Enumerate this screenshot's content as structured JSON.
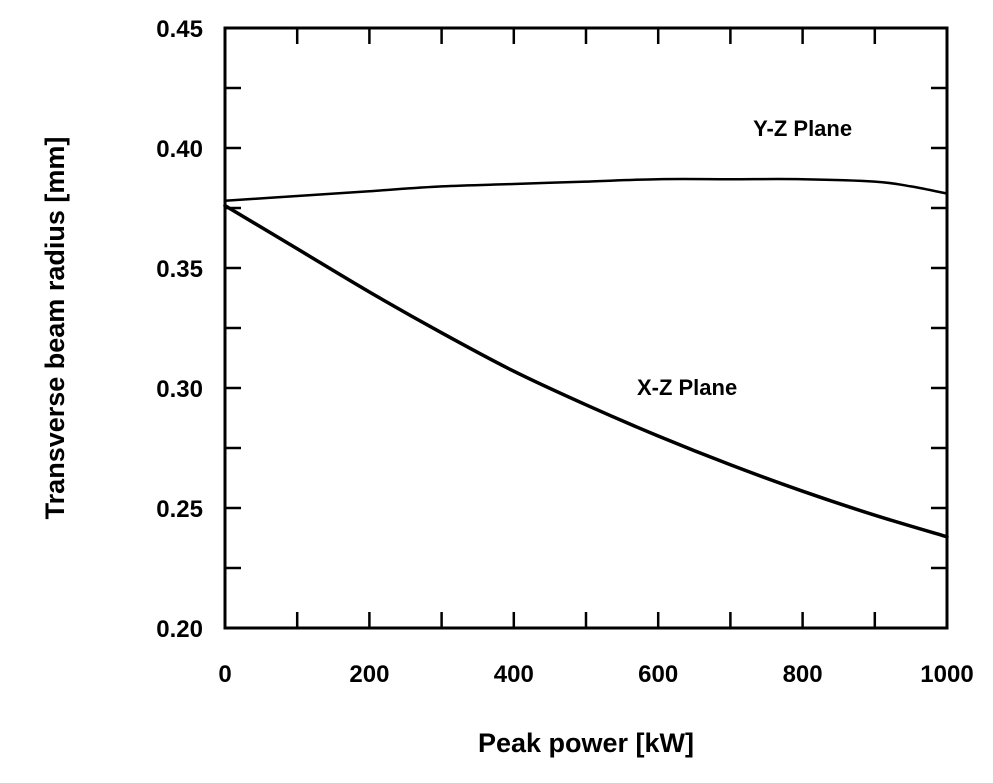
{
  "chart_data": {
    "type": "line",
    "title": "",
    "xlabel": "Peak power [kW]",
    "ylabel": "Transverse beam radius [mm]",
    "xlim": [
      0,
      1000
    ],
    "ylim": [
      0.2,
      0.45
    ],
    "x_ticks": [
      0,
      200,
      400,
      600,
      800,
      1000
    ],
    "x_tick_labels": [
      "0",
      "200",
      "400",
      "600",
      "800",
      "1000"
    ],
    "x_minor_step": 100,
    "y_ticks": [
      0.2,
      0.25,
      0.3,
      0.35,
      0.4,
      0.45
    ],
    "y_tick_labels": [
      "0.20",
      "0.25",
      "0.30",
      "0.35",
      "0.40",
      "0.45"
    ],
    "y_minor_step": 0.025,
    "grid": false,
    "series": [
      {
        "name": "Y-Z Plane",
        "x": [
          0,
          100,
          200,
          300,
          400,
          500,
          600,
          700,
          800,
          900,
          950,
          1000
        ],
        "y": [
          0.378,
          0.38,
          0.382,
          0.384,
          0.385,
          0.386,
          0.387,
          0.387,
          0.387,
          0.386,
          0.384,
          0.381
        ]
      },
      {
        "name": "X-Z Plane",
        "x": [
          0,
          100,
          200,
          300,
          400,
          500,
          600,
          700,
          800,
          900,
          1000
        ],
        "y": [
          0.376,
          0.358,
          0.34,
          0.323,
          0.307,
          0.293,
          0.28,
          0.268,
          0.257,
          0.247,
          0.238
        ]
      }
    ],
    "annotations": [
      {
        "text": "Y-Z Plane",
        "x": 800,
        "y": 0.405
      },
      {
        "text": "X-Z Plane",
        "x": 640,
        "y": 0.297
      }
    ]
  }
}
